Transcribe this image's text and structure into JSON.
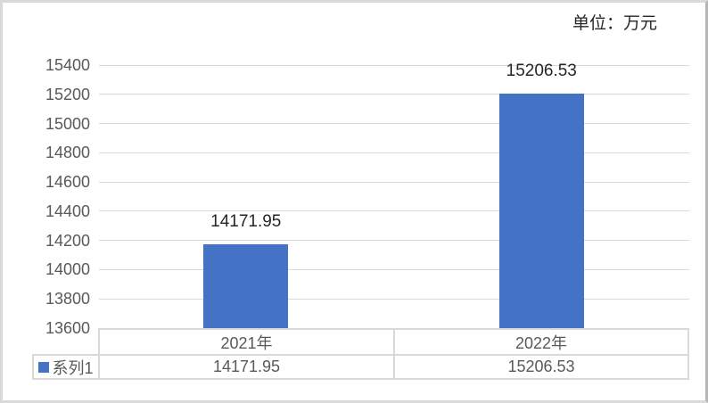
{
  "unit_label": "单位：万元",
  "colors": {
    "bar": "#4472C4",
    "gridline": "#D9D9D9",
    "table_border": "#D9D9D9",
    "axis_text": "#595959",
    "data_label_text": "#262626",
    "background": "#FFFFFF"
  },
  "chart_data": {
    "type": "bar",
    "title": "",
    "unit": "万元",
    "categories": [
      "2021年",
      "2022年"
    ],
    "series": [
      {
        "name": "系列1",
        "values": [
          14171.95,
          15206.53
        ]
      }
    ],
    "data_labels": [
      "14171.95",
      "15206.53"
    ],
    "xlabel": "",
    "ylabel": "",
    "ylim": [
      13600,
      15400
    ],
    "ytick_step": 200,
    "yticks": [
      15400,
      15200,
      15000,
      14800,
      14600,
      14400,
      14200,
      14000,
      13800,
      13600
    ],
    "grid": true,
    "legend_entries": [
      "系列1"
    ],
    "legend_position": "data-table-left",
    "data_table_shown": true
  },
  "data_table": {
    "legend_label": "系列1",
    "headers": [
      "2021年",
      "2022年"
    ],
    "rows": [
      {
        "name": "系列1",
        "values": [
          "14171.95",
          "15206.53"
        ]
      }
    ]
  }
}
